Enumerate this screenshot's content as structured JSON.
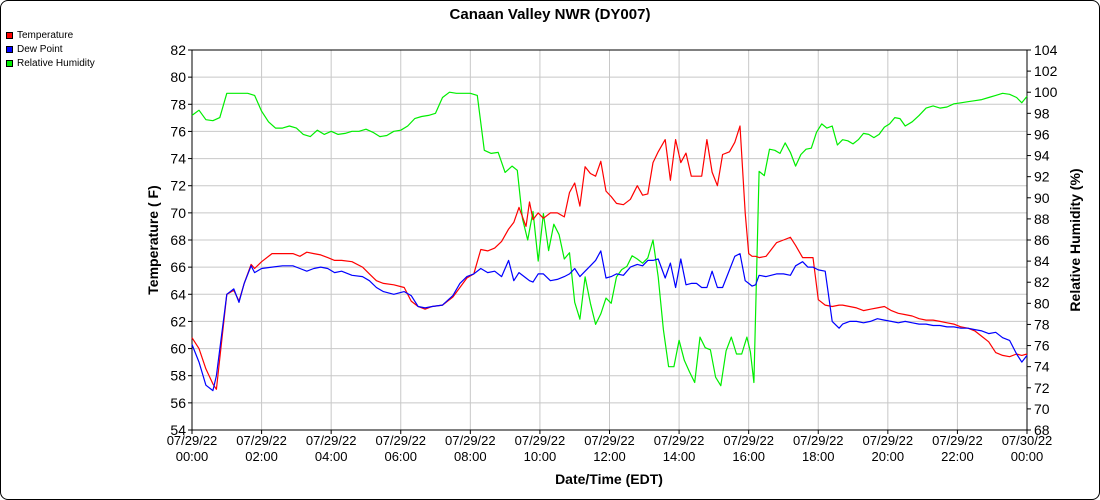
{
  "chart_data": {
    "type": "line",
    "title": "Canaan Valley NWR (DY007)",
    "xlabel": "Date/Time (EDT)",
    "ylabel_left": "Temperature ( F)",
    "ylabel_right": "Relative Humidity (%)",
    "ylim_left": [
      54,
      82
    ],
    "ylim_right": [
      68,
      104
    ],
    "yticks_left": [
      54,
      56,
      58,
      60,
      62,
      64,
      66,
      68,
      70,
      72,
      74,
      76,
      78,
      80,
      82
    ],
    "yticks_right": [
      68,
      70,
      72,
      74,
      76,
      78,
      80,
      82,
      84,
      86,
      88,
      90,
      92,
      94,
      96,
      98,
      100,
      102,
      104
    ],
    "xlim_hours": [
      0,
      24
    ],
    "xticks": [
      {
        "date": "07/29/22",
        "time": "00:00"
      },
      {
        "date": "07/29/22",
        "time": "02:00"
      },
      {
        "date": "07/29/22",
        "time": "04:00"
      },
      {
        "date": "07/29/22",
        "time": "06:00"
      },
      {
        "date": "07/29/22",
        "time": "08:00"
      },
      {
        "date": "07/29/22",
        "time": "10:00"
      },
      {
        "date": "07/29/22",
        "time": "12:00"
      },
      {
        "date": "07/29/22",
        "time": "14:00"
      },
      {
        "date": "07/29/22",
        "time": "16:00"
      },
      {
        "date": "07/29/22",
        "time": "18:00"
      },
      {
        "date": "07/29/22",
        "time": "20:00"
      },
      {
        "date": "07/29/22",
        "time": "22:00"
      },
      {
        "date": "07/30/22",
        "time": "00:00"
      }
    ],
    "grid": true,
    "legend_position": "top-left",
    "series": [
      {
        "name": "Temperature",
        "color": "#ff0000",
        "axis": "left",
        "x": [
          0,
          0.2,
          0.4,
          0.6,
          0.7,
          1,
          1.2,
          1.35,
          1.5,
          1.7,
          1.8,
          2,
          2.3,
          2.6,
          2.9,
          3.1,
          3.3,
          3.5,
          3.7,
          3.9,
          4.1,
          4.3,
          4.6,
          4.9,
          5.1,
          5.3,
          5.5,
          5.8,
          6.1,
          6.3,
          6.5,
          6.7,
          6.9,
          7.2,
          7.5,
          7.7,
          7.9,
          8.1,
          8.3,
          8.5,
          8.7,
          8.9,
          9.1,
          9.25,
          9.4,
          9.6,
          9.7,
          9.8,
          9.95,
          10.1,
          10.3,
          10.5,
          10.7,
          10.85,
          11,
          11.15,
          11.3,
          11.45,
          11.6,
          11.75,
          11.9,
          12.05,
          12.2,
          12.4,
          12.6,
          12.8,
          12.95,
          13.1,
          13.25,
          13.4,
          13.6,
          13.75,
          13.9,
          14.05,
          14.2,
          14.35,
          14.5,
          14.65,
          14.8,
          14.95,
          15.1,
          15.25,
          15.45,
          15.6,
          15.75,
          15.9,
          16.0,
          16.1,
          16.2,
          16.3,
          16.5,
          16.8,
          17.0,
          17.2,
          17.35,
          17.55,
          17.7,
          17.85,
          18.0,
          18.2,
          18.4,
          18.6,
          18.7,
          18.9,
          19.1,
          19.3,
          19.5,
          19.7,
          19.9,
          20.1,
          20.3,
          20.5,
          20.7,
          20.9,
          21.1,
          21.3,
          21.5,
          21.7,
          21.9,
          22.1,
          22.3,
          22.5,
          22.7,
          22.9,
          23.1,
          23.3,
          23.5,
          23.7,
          23.85,
          24
        ],
        "values": [
          60.8,
          60.0,
          58.5,
          57.4,
          57.0,
          64.0,
          64.3,
          63.5,
          64.8,
          66.2,
          65.9,
          66.4,
          67.0,
          67.0,
          67.0,
          66.8,
          67.1,
          67.0,
          66.9,
          66.7,
          66.5,
          66.5,
          66.4,
          66.0,
          65.5,
          65.0,
          64.8,
          64.7,
          64.5,
          63.5,
          63.1,
          62.9,
          63.1,
          63.2,
          63.8,
          64.5,
          65.2,
          65.5,
          67.3,
          67.2,
          67.4,
          67.9,
          68.8,
          69.3,
          70.4,
          69.0,
          70.8,
          69.5,
          70.0,
          69.6,
          70.0,
          70.0,
          69.7,
          71.5,
          72.2,
          70.5,
          73.4,
          72.9,
          72.7,
          73.8,
          71.6,
          71.2,
          70.7,
          70.6,
          71.0,
          72.0,
          71.3,
          71.4,
          73.7,
          74.5,
          75.4,
          72.4,
          75.4,
          73.7,
          74.4,
          72.7,
          72.7,
          72.7,
          75.4,
          73.0,
          72.0,
          74.3,
          74.5,
          75.2,
          76.4,
          70.0,
          67.0,
          66.8,
          66.8,
          66.7,
          66.8,
          67.8,
          68.0,
          68.2,
          67.6,
          66.7,
          66.7,
          66.7,
          63.6,
          63.2,
          63.1,
          63.2,
          63.2,
          63.1,
          63.0,
          62.8,
          62.9,
          63.0,
          63.1,
          62.8,
          62.6,
          62.5,
          62.4,
          62.2,
          62.1,
          62.1,
          62.0,
          61.9,
          61.8,
          61.6,
          61.5,
          61.3,
          60.9,
          60.5,
          59.7,
          59.5,
          59.4,
          59.6,
          59.5,
          59.6
        ]
      },
      {
        "name": "Dew Point",
        "color": "#0000ff",
        "axis": "left",
        "x": [
          0,
          0.2,
          0.4,
          0.6,
          0.7,
          1,
          1.2,
          1.35,
          1.5,
          1.7,
          1.8,
          2,
          2.3,
          2.6,
          2.9,
          3.1,
          3.3,
          3.5,
          3.7,
          3.9,
          4.1,
          4.3,
          4.6,
          4.9,
          5.1,
          5.3,
          5.5,
          5.8,
          6.1,
          6.3,
          6.5,
          6.7,
          6.9,
          7.2,
          7.5,
          7.7,
          7.9,
          8.1,
          8.3,
          8.5,
          8.7,
          8.9,
          9.1,
          9.25,
          9.4,
          9.6,
          9.7,
          9.8,
          9.95,
          10.1,
          10.3,
          10.5,
          10.7,
          10.85,
          11,
          11.15,
          11.3,
          11.45,
          11.6,
          11.75,
          11.9,
          12.05,
          12.2,
          12.4,
          12.6,
          12.8,
          12.95,
          13.1,
          13.25,
          13.4,
          13.6,
          13.75,
          13.9,
          14.05,
          14.2,
          14.35,
          14.5,
          14.65,
          14.8,
          14.95,
          15.1,
          15.25,
          15.45,
          15.6,
          15.75,
          15.9,
          16.0,
          16.1,
          16.2,
          16.3,
          16.5,
          16.8,
          17.0,
          17.2,
          17.35,
          17.55,
          17.7,
          17.85,
          18.0,
          18.2,
          18.4,
          18.6,
          18.7,
          18.9,
          19.1,
          19.3,
          19.5,
          19.7,
          19.9,
          20.1,
          20.3,
          20.5,
          20.7,
          20.9,
          21.1,
          21.3,
          21.5,
          21.7,
          21.9,
          22.1,
          22.3,
          22.5,
          22.7,
          22.9,
          23.1,
          23.3,
          23.5,
          23.7,
          23.85,
          24
        ],
        "values": [
          60.3,
          59.0,
          57.3,
          56.9,
          58.0,
          64.0,
          64.4,
          63.4,
          64.8,
          66.1,
          65.6,
          65.9,
          66.0,
          66.1,
          66.1,
          65.9,
          65.7,
          65.9,
          66.0,
          65.9,
          65.6,
          65.7,
          65.4,
          65.3,
          65.0,
          64.5,
          64.2,
          64.0,
          64.2,
          63.9,
          63.1,
          63.0,
          63.1,
          63.2,
          63.9,
          64.8,
          65.3,
          65.5,
          65.9,
          65.6,
          65.7,
          65.3,
          66.5,
          65.0,
          65.6,
          65.2,
          65.0,
          64.9,
          65.5,
          65.5,
          65.0,
          65.1,
          65.3,
          65.5,
          65.9,
          65.3,
          65.7,
          66.1,
          66.5,
          67.2,
          65.2,
          65.3,
          65.5,
          65.4,
          66.0,
          66.2,
          66.1,
          66.5,
          66.5,
          66.6,
          65.2,
          66.3,
          64.5,
          66.6,
          64.7,
          64.8,
          64.8,
          64.5,
          64.5,
          65.7,
          64.5,
          64.5,
          65.8,
          66.8,
          67.0,
          65.0,
          64.8,
          64.6,
          64.7,
          65.4,
          65.3,
          65.5,
          65.5,
          65.4,
          66.1,
          66.4,
          66.0,
          66.0,
          65.8,
          65.7,
          62.0,
          61.5,
          61.8,
          62.0,
          62.0,
          61.9,
          62.0,
          62.2,
          62.1,
          62.0,
          61.9,
          62.0,
          61.9,
          61.8,
          61.8,
          61.7,
          61.7,
          61.6,
          61.6,
          61.5,
          61.5,
          61.4,
          61.3,
          61.1,
          61.2,
          60.8,
          60.6,
          59.6,
          59.0,
          59.5
        ]
      },
      {
        "name": "Relative Humidity",
        "color": "#00ee00",
        "axis": "right",
        "x": [
          0,
          0.2,
          0.4,
          0.6,
          0.8,
          1,
          1.2,
          1.4,
          1.6,
          1.8,
          2,
          2.2,
          2.4,
          2.6,
          2.8,
          3.0,
          3.2,
          3.4,
          3.6,
          3.8,
          4.0,
          4.2,
          4.4,
          4.6,
          4.8,
          5.0,
          5.2,
          5.4,
          5.6,
          5.8,
          6.0,
          6.2,
          6.4,
          6.6,
          6.8,
          7.0,
          7.2,
          7.4,
          7.6,
          7.8,
          8.0,
          8.2,
          8.4,
          8.6,
          8.8,
          9.0,
          9.2,
          9.35,
          9.5,
          9.65,
          9.8,
          9.95,
          10.1,
          10.25,
          10.4,
          10.55,
          10.7,
          10.85,
          11.0,
          11.15,
          11.3,
          11.45,
          11.6,
          11.75,
          11.9,
          12.05,
          12.2,
          12.35,
          12.5,
          12.65,
          12.8,
          12.95,
          13.1,
          13.25,
          13.4,
          13.55,
          13.7,
          13.85,
          14.0,
          14.15,
          14.3,
          14.45,
          14.6,
          14.75,
          14.9,
          15.05,
          15.2,
          15.35,
          15.5,
          15.65,
          15.8,
          15.95,
          16.05,
          16.15,
          16.3,
          16.45,
          16.6,
          16.75,
          16.9,
          17.05,
          17.2,
          17.35,
          17.5,
          17.65,
          17.8,
          17.95,
          18.1,
          18.25,
          18.4,
          18.55,
          18.7,
          18.85,
          19.0,
          19.15,
          19.3,
          19.45,
          19.6,
          19.75,
          19.9,
          20.05,
          20.2,
          20.35,
          20.5,
          20.7,
          20.9,
          21.1,
          21.3,
          21.5,
          21.7,
          21.9,
          22.1,
          22.3,
          22.5,
          22.7,
          22.9,
          23.1,
          23.3,
          23.5,
          23.7,
          23.85,
          24
        ],
        "values": [
          97.8,
          98.3,
          97.4,
          97.3,
          97.6,
          99.9,
          99.9,
          99.9,
          99.9,
          99.7,
          98.2,
          97.2,
          96.6,
          96.6,
          96.8,
          96.6,
          96.0,
          95.8,
          96.4,
          96.0,
          96.3,
          96.0,
          96.1,
          96.3,
          96.3,
          96.5,
          96.2,
          95.8,
          95.9,
          96.3,
          96.4,
          96.8,
          97.5,
          97.7,
          97.8,
          98.0,
          99.5,
          100.0,
          99.9,
          99.9,
          99.9,
          99.7,
          94.5,
          94.2,
          94.3,
          92.4,
          93.0,
          92.6,
          88.0,
          86.0,
          88.7,
          84.0,
          88.5,
          85.0,
          87.5,
          86.5,
          84.2,
          84.8,
          80.1,
          78.5,
          82.5,
          80.0,
          78.0,
          79.0,
          80.5,
          80.0,
          82.5,
          83.2,
          83.5,
          84.5,
          84.2,
          83.8,
          84.3,
          86.0,
          82.5,
          77.5,
          74.0,
          74.0,
          76.5,
          74.6,
          73.5,
          72.5,
          76.8,
          75.8,
          75.6,
          73.0,
          72.2,
          75.5,
          76.8,
          75.2,
          75.2,
          76.8,
          75.4,
          72.5,
          92.5,
          92.1,
          94.6,
          94.5,
          94.2,
          95.2,
          94.3,
          93.0,
          94.1,
          94.6,
          94.7,
          96.2,
          97.0,
          96.6,
          96.8,
          95.0,
          95.5,
          95.4,
          95.1,
          95.5,
          96.1,
          96.0,
          95.7,
          96.0,
          96.7,
          97.0,
          97.6,
          97.5,
          96.8,
          97.2,
          97.8,
          98.5,
          98.7,
          98.5,
          98.6,
          98.9,
          99.0,
          99.1,
          99.2,
          99.3,
          99.5,
          99.7,
          99.9,
          99.8,
          99.5,
          99.0,
          99.6
        ]
      }
    ]
  }
}
